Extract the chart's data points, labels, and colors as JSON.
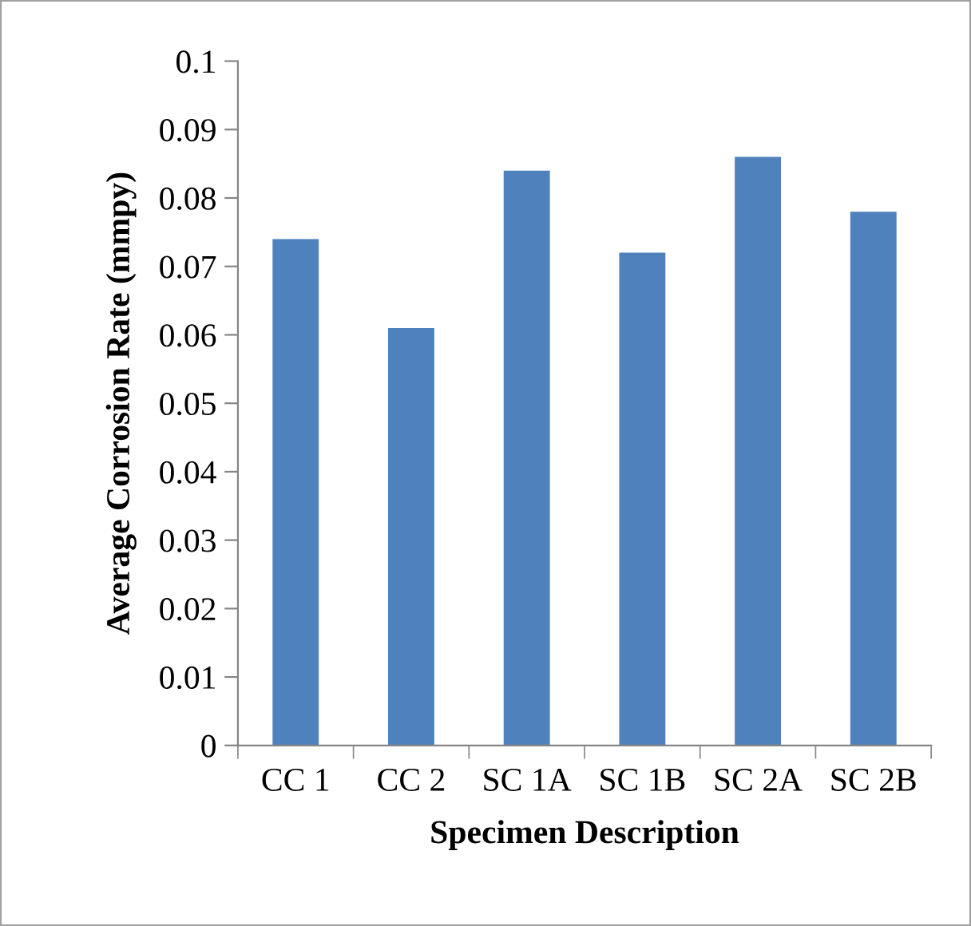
{
  "chart_data": {
    "type": "bar",
    "xlabel": "Specimen Description",
    "ylabel": "Average Corrosion Rate (mmpy)",
    "categories": [
      "CC 1",
      "CC 2",
      "SC 1A",
      "SC 1B",
      "SC 2A",
      "SC 2B"
    ],
    "values": [
      0.074,
      0.061,
      0.084,
      0.072,
      0.086,
      0.078
    ],
    "color": "#4f81bd",
    "ylim": [
      0,
      0.1
    ],
    "yticks": [
      0,
      0.01,
      0.02,
      0.03,
      0.04,
      0.05,
      0.06,
      0.07,
      0.08,
      0.09,
      0.1
    ],
    "grid": false,
    "legend": false
  }
}
